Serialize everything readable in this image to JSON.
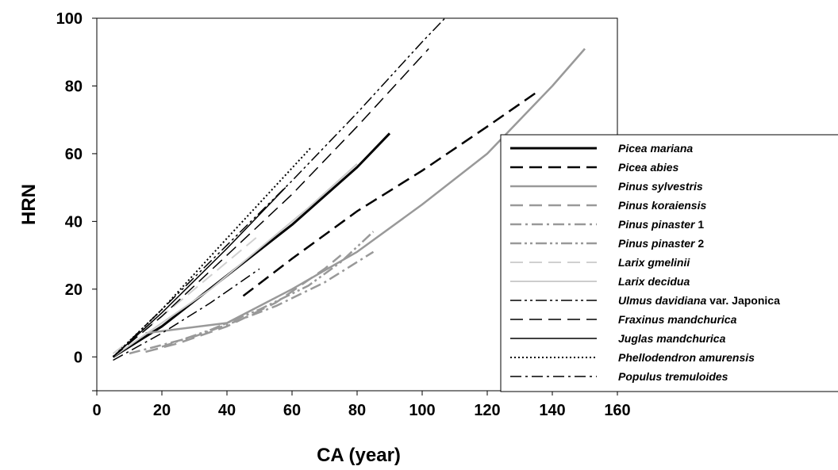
{
  "chart_data": {
    "type": "line",
    "title": "",
    "xlabel": "CA (year)",
    "ylabel": "HRN",
    "xlim": [
      0,
      160
    ],
    "ylim": [
      -10,
      100
    ],
    "xticks": [
      "0",
      "20",
      "40",
      "60",
      "80",
      "100",
      "120",
      "140",
      "160"
    ],
    "yticks": [
      "0",
      "20",
      "40",
      "60",
      "80",
      "100"
    ],
    "grid": false,
    "legend_position": "right",
    "series": [
      {
        "name": "Picea mariana",
        "legend_label": {
          "main": "Picea mariana",
          "suffix": ""
        },
        "style": "solid",
        "color": "#000000",
        "width": 3,
        "x": [
          5,
          20,
          40,
          60,
          80,
          90
        ],
        "y": [
          0,
          9,
          24,
          39,
          56,
          66
        ]
      },
      {
        "name": "Picea abies",
        "legend_label": {
          "main": "Picea abies",
          "suffix": ""
        },
        "style": "longdash",
        "color": "#000000",
        "width": 2.5,
        "x": [
          45,
          60,
          80,
          100,
          120,
          135
        ],
        "y": [
          18,
          29,
          43,
          55,
          68,
          78
        ]
      },
      {
        "name": "Pinus sylvestris",
        "legend_label": {
          "main": "Pinus sylvestris",
          "suffix": ""
        },
        "style": "solid",
        "color": "#999999",
        "width": 2.5,
        "x": [
          15,
          40,
          60,
          80,
          100,
          120,
          140,
          150
        ],
        "y": [
          7,
          10,
          20,
          31,
          45,
          60,
          80,
          91
        ]
      },
      {
        "name": "Pinus koraiensis",
        "legend_label": {
          "main": "Pinus koraiensis",
          "suffix": ""
        },
        "style": "longdash",
        "color": "#999999",
        "width": 2.5,
        "x": [
          15,
          25,
          40,
          55,
          70,
          75
        ],
        "y": [
          1.5,
          4,
          9,
          16,
          26,
          30
        ]
      },
      {
        "name": "Pinus pinaster 1",
        "legend_label": {
          "main": "Pinus pinaster",
          "suffix": " 1"
        },
        "style": "dashdot",
        "color": "#999999",
        "width": 2.5,
        "x": [
          10,
          20,
          30,
          40,
          55,
          70,
          85
        ],
        "y": [
          1,
          3.5,
          6,
          9.5,
          15,
          22,
          31
        ]
      },
      {
        "name": "Pinus pinaster 2",
        "legend_label": {
          "main": "Pinus pinaster",
          "suffix": " 2"
        },
        "style": "dashdotdot",
        "color": "#999999",
        "width": 2.5,
        "x": [
          20,
          35,
          50,
          65,
          75,
          85
        ],
        "y": [
          3,
          8,
          14,
          21,
          28,
          37
        ]
      },
      {
        "name": "Larix gmelinii",
        "legend_label": {
          "main": "Larix gmelinii",
          "suffix": ""
        },
        "style": "longdash",
        "color": "#d0d0d0",
        "width": 2,
        "x": [
          5,
          20,
          35,
          50
        ],
        "y": [
          1,
          12,
          24,
          36
        ]
      },
      {
        "name": "Larix decidua",
        "legend_label": {
          "main": "Larix decidua",
          "suffix": ""
        },
        "style": "solid",
        "color": "#cccccc",
        "width": 2,
        "x": [
          5,
          20,
          35,
          50,
          65,
          80
        ],
        "y": [
          0,
          10,
          20,
          32,
          44,
          57
        ]
      },
      {
        "name": "Ulmus davidiana  var. Japonica",
        "legend_label": {
          "main": "Ulmus davidiana ",
          "suffix": " var. Japonica"
        },
        "style": "dashdotdot",
        "color": "#000000",
        "width": 1.5,
        "x": [
          5,
          20,
          40,
          60,
          80,
          100,
          107
        ],
        "y": [
          0,
          14,
          33,
          52,
          72,
          93,
          100
        ]
      },
      {
        "name": "Fraxinus mandchurica",
        "legend_label": {
          "main": "Fraxinus mandchurica",
          "suffix": ""
        },
        "style": "longdash",
        "color": "#000000",
        "width": 1.5,
        "x": [
          5,
          20,
          40,
          60,
          80,
          102
        ],
        "y": [
          0,
          12,
          30,
          48,
          68,
          91
        ]
      },
      {
        "name": "Juglas mandchurica",
        "legend_label": {
          "main": "Juglas mandchurica",
          "suffix": ""
        },
        "style": "solid",
        "color": "#000000",
        "width": 1.5,
        "x": [
          5,
          20,
          40,
          58
        ],
        "y": [
          0,
          13,
          32,
          50
        ]
      },
      {
        "name": "Phellodendron amurensis",
        "legend_label": {
          "main": "Phellodendron amurensis",
          "suffix": ""
        },
        "style": "dotted",
        "color": "#000000",
        "width": 2,
        "x": [
          5,
          20,
          40,
          66
        ],
        "y": [
          0,
          14,
          35,
          62
        ]
      },
      {
        "name": "Populus tremuloides",
        "legend_label": {
          "main": "Populus tremuloides",
          "suffix": ""
        },
        "style": "dashdot",
        "color": "#000000",
        "width": 1.5,
        "x": [
          5,
          20,
          35,
          50
        ],
        "y": [
          -1,
          7,
          16,
          26
        ]
      }
    ]
  }
}
